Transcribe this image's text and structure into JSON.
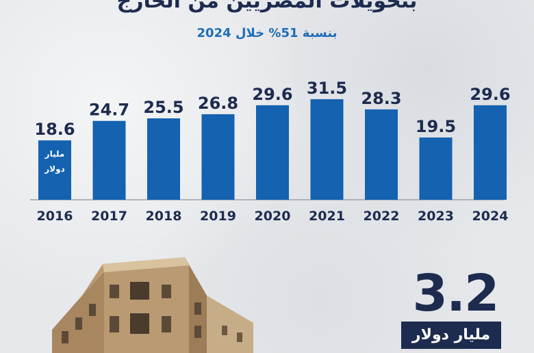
{
  "headline": "بتحويلات المصريين من الخارج",
  "subtitle": "بنسبة 51% خلال 2024",
  "highlight": {
    "value": "3.2",
    "unit": "مليار دولار"
  },
  "colors": {
    "bar": "#1462b0",
    "text_dark": "#1d2b4f",
    "subtitle": "#1f6db5"
  },
  "chart_data": {
    "type": "bar",
    "title": "",
    "xlabel": "",
    "ylabel": "",
    "categories": [
      "2016",
      "2017",
      "2018",
      "2019",
      "2020",
      "2021",
      "2022",
      "2023",
      "2024"
    ],
    "values": [
      18.6,
      24.7,
      25.5,
      26.8,
      29.6,
      31.5,
      28.3,
      19.5,
      29.6
    ],
    "value_labels": [
      "18.6",
      "24.7",
      "25.5",
      "26.8",
      "29.6",
      "31.5",
      "28.3",
      "19.5",
      "29.6"
    ],
    "first_bar_unit": [
      "مليار",
      "دولار"
    ],
    "ylim": [
      0,
      40
    ],
    "grid": false
  }
}
